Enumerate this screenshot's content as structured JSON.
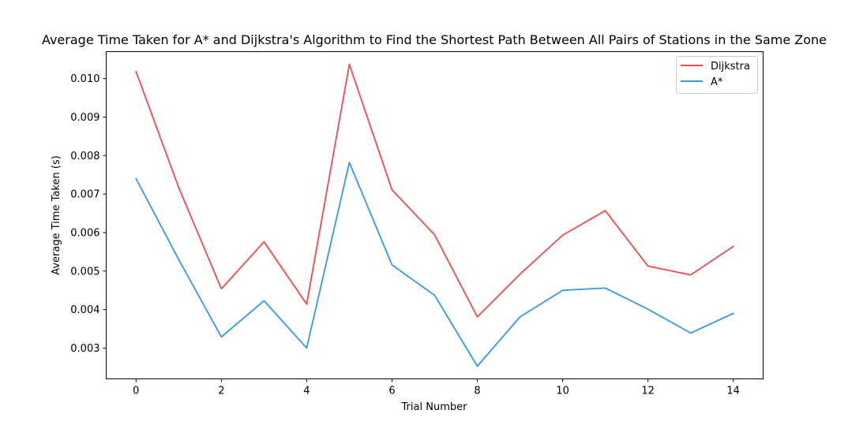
{
  "chart_data": {
    "type": "line",
    "title": "Average Time Taken for A* and Dijkstra's Algorithm to Find the Shortest Path Between All Pairs of Stations in the Same Zone",
    "xlabel": "Trial Number",
    "ylabel": "Average Time Taken (s)",
    "x": [
      0,
      1,
      2,
      3,
      4,
      5,
      6,
      7,
      8,
      9,
      10,
      11,
      12,
      13,
      14
    ],
    "xlim": [
      -0.7,
      14.7
    ],
    "ylim": [
      0.0022,
      0.0107
    ],
    "xticks": [
      0,
      2,
      4,
      6,
      8,
      10,
      12,
      14
    ],
    "xtick_labels": [
      "0",
      "2",
      "4",
      "6",
      "8",
      "10",
      "12",
      "14"
    ],
    "yticks": [
      0.003,
      0.004,
      0.005,
      0.006,
      0.007,
      0.008,
      0.009,
      0.01
    ],
    "ytick_labels": [
      "0.003",
      "0.004",
      "0.005",
      "0.006",
      "0.007",
      "0.008",
      "0.009",
      "0.010"
    ],
    "grid": false,
    "legend_position": "top-right",
    "series": [
      {
        "name": "Dijkstra",
        "color": "#f14b4b",
        "values": [
          0.01018,
          0.00717,
          0.00454,
          0.00576,
          0.00414,
          0.01037,
          0.00711,
          0.00594,
          0.00381,
          0.00492,
          0.00593,
          0.00657,
          0.00513,
          0.0049,
          0.00564
        ]
      },
      {
        "name": "A*",
        "color": "#3399ee",
        "values": [
          0.0074,
          0.0053,
          0.00329,
          0.00423,
          0.003,
          0.00782,
          0.00516,
          0.00437,
          0.00253,
          0.00381,
          0.0045,
          0.00456,
          0.00401,
          0.00339,
          0.0039
        ]
      }
    ]
  }
}
